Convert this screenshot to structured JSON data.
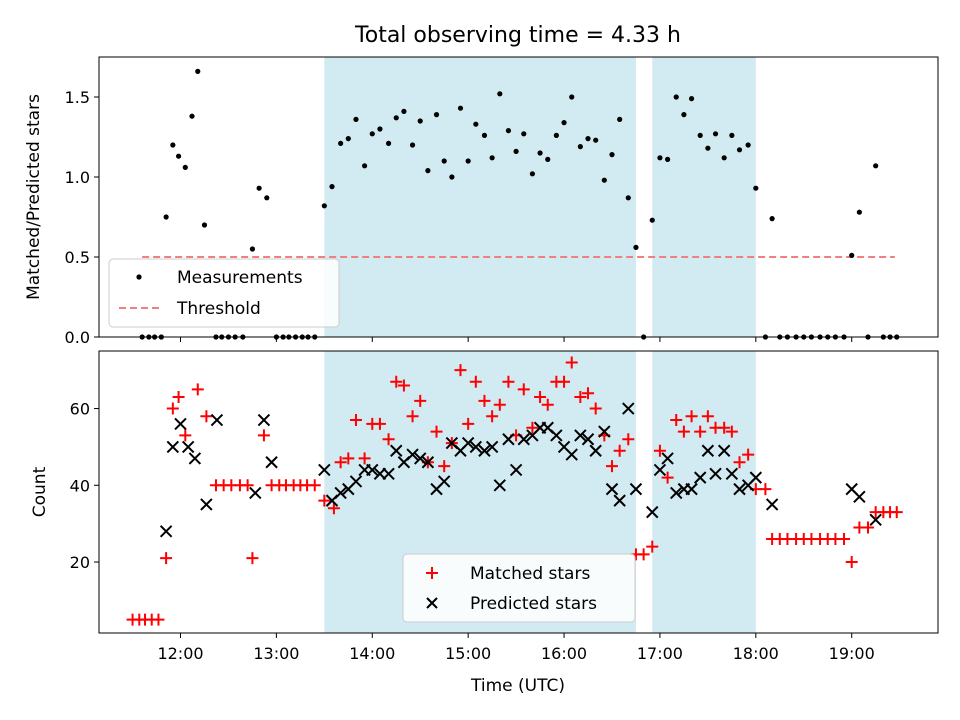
{
  "chart_data": {
    "title": "Total observing time = 4.33 h",
    "xlabel": "Time (UTC)",
    "xlim": [
      11.15,
      19.9
    ],
    "xticks": [
      {
        "v": 12,
        "label": "12:00"
      },
      {
        "v": 13,
        "label": "13:00"
      },
      {
        "v": 14,
        "label": "14:00"
      },
      {
        "v": 15,
        "label": "15:00"
      },
      {
        "v": 16,
        "label": "16:00"
      },
      {
        "v": 17,
        "label": "17:00"
      },
      {
        "v": 18,
        "label": "18:00"
      },
      {
        "v": 19,
        "label": "19:00"
      }
    ],
    "shaded_spans": [
      [
        13.5,
        16.75
      ],
      [
        16.92,
        18.0
      ]
    ],
    "shade_color": "#add8e6",
    "top": {
      "type": "scatter",
      "ylabel": "Matched/Predicted stars",
      "ylim": [
        0,
        1.75
      ],
      "yticks": [
        0.0,
        0.5,
        1.0,
        1.5
      ],
      "threshold": {
        "name": "Threshold",
        "value": 0.5,
        "x_range": [
          11.6,
          19.45
        ],
        "color": "#f08080"
      },
      "series_name": "Measurements",
      "legend_items": [
        "Measurements",
        "Threshold"
      ],
      "points": [
        [
          11.6,
          0
        ],
        [
          11.67,
          0
        ],
        [
          11.73,
          0
        ],
        [
          11.8,
          0
        ],
        [
          11.85,
          0.75
        ],
        [
          11.92,
          1.2
        ],
        [
          11.98,
          1.13
        ],
        [
          12.05,
          1.06
        ],
        [
          12.12,
          1.38
        ],
        [
          12.18,
          1.66
        ],
        [
          12.25,
          0.7
        ],
        [
          12.37,
          0
        ],
        [
          12.43,
          0
        ],
        [
          12.5,
          0
        ],
        [
          12.57,
          0
        ],
        [
          12.65,
          0
        ],
        [
          12.75,
          0.55
        ],
        [
          12.82,
          0.93
        ],
        [
          12.9,
          0.87
        ],
        [
          13.0,
          0
        ],
        [
          13.07,
          0
        ],
        [
          13.13,
          0
        ],
        [
          13.2,
          0
        ],
        [
          13.27,
          0
        ],
        [
          13.33,
          0
        ],
        [
          13.4,
          0
        ],
        [
          13.5,
          0.82
        ],
        [
          13.58,
          0.94
        ],
        [
          13.67,
          1.21
        ],
        [
          13.75,
          1.24
        ],
        [
          13.83,
          1.36
        ],
        [
          13.92,
          1.07
        ],
        [
          14.0,
          1.27
        ],
        [
          14.08,
          1.3
        ],
        [
          14.17,
          1.21
        ],
        [
          14.25,
          1.37
        ],
        [
          14.33,
          1.41
        ],
        [
          14.42,
          1.2
        ],
        [
          14.5,
          1.35
        ],
        [
          14.58,
          1.04
        ],
        [
          14.67,
          1.39
        ],
        [
          14.75,
          1.1
        ],
        [
          14.83,
          1.0
        ],
        [
          14.92,
          1.43
        ],
        [
          15.0,
          1.1
        ],
        [
          15.08,
          1.33
        ],
        [
          15.17,
          1.26
        ],
        [
          15.25,
          1.12
        ],
        [
          15.33,
          1.52
        ],
        [
          15.42,
          1.29
        ],
        [
          15.5,
          1.16
        ],
        [
          15.58,
          1.27
        ],
        [
          15.67,
          1.02
        ],
        [
          15.75,
          1.15
        ],
        [
          15.83,
          1.11
        ],
        [
          15.92,
          1.26
        ],
        [
          16.0,
          1.34
        ],
        [
          16.08,
          1.5
        ],
        [
          16.17,
          1.19
        ],
        [
          16.25,
          1.24
        ],
        [
          16.33,
          1.23
        ],
        [
          16.42,
          0.98
        ],
        [
          16.5,
          1.14
        ],
        [
          16.58,
          1.36
        ],
        [
          16.67,
          0.87
        ],
        [
          16.75,
          0.56
        ],
        [
          16.83,
          0
        ],
        [
          16.92,
          0.73
        ],
        [
          17.0,
          1.12
        ],
        [
          17.08,
          1.11
        ],
        [
          17.17,
          1.5
        ],
        [
          17.25,
          1.39
        ],
        [
          17.33,
          1.49
        ],
        [
          17.42,
          1.26
        ],
        [
          17.5,
          1.18
        ],
        [
          17.58,
          1.27
        ],
        [
          17.67,
          1.12
        ],
        [
          17.75,
          1.26
        ],
        [
          17.83,
          1.17
        ],
        [
          17.92,
          1.2
        ],
        [
          18.0,
          0.93
        ],
        [
          18.1,
          0
        ],
        [
          18.17,
          0.74
        ],
        [
          18.25,
          0
        ],
        [
          18.33,
          0
        ],
        [
          18.42,
          0
        ],
        [
          18.5,
          0
        ],
        [
          18.58,
          0
        ],
        [
          18.67,
          0
        ],
        [
          18.75,
          0
        ],
        [
          18.83,
          0
        ],
        [
          18.92,
          0
        ],
        [
          19.0,
          0.51
        ],
        [
          19.08,
          0.78
        ],
        [
          19.17,
          0
        ],
        [
          19.25,
          1.07
        ],
        [
          19.33,
          0
        ],
        [
          19.4,
          0
        ],
        [
          19.47,
          0
        ]
      ]
    },
    "bottom": {
      "type": "scatter",
      "ylabel": "Count",
      "ylim": [
        1.5,
        75
      ],
      "yticks": [
        20,
        40,
        60
      ],
      "series": [
        {
          "name": "Matched stars",
          "marker": "+",
          "color": "#ff0000",
          "points": [
            [
              11.5,
              5
            ],
            [
              11.57,
              5
            ],
            [
              11.63,
              5
            ],
            [
              11.7,
              5
            ],
            [
              11.77,
              5
            ],
            [
              11.85,
              21
            ],
            [
              11.92,
              60
            ],
            [
              11.98,
              63
            ],
            [
              12.05,
              53
            ],
            [
              12.18,
              65
            ],
            [
              12.27,
              58
            ],
            [
              12.37,
              40
            ],
            [
              12.45,
              40
            ],
            [
              12.53,
              40
            ],
            [
              12.62,
              40
            ],
            [
              12.7,
              40
            ],
            [
              12.75,
              21
            ],
            [
              12.87,
              53
            ],
            [
              12.95,
              40
            ],
            [
              13.03,
              40
            ],
            [
              13.1,
              40
            ],
            [
              13.18,
              40
            ],
            [
              13.25,
              40
            ],
            [
              13.32,
              40
            ],
            [
              13.4,
              40
            ],
            [
              13.5,
              36
            ],
            [
              13.6,
              34
            ],
            [
              13.67,
              46
            ],
            [
              13.75,
              47
            ],
            [
              13.83,
              57
            ],
            [
              13.92,
              47
            ],
            [
              14.0,
              56
            ],
            [
              14.08,
              56
            ],
            [
              14.17,
              52
            ],
            [
              14.25,
              67
            ],
            [
              14.33,
              66
            ],
            [
              14.42,
              58
            ],
            [
              14.5,
              62
            ],
            [
              14.58,
              46
            ],
            [
              14.67,
              54
            ],
            [
              14.75,
              45
            ],
            [
              14.83,
              51
            ],
            [
              14.92,
              70
            ],
            [
              15.0,
              56
            ],
            [
              15.08,
              67
            ],
            [
              15.17,
              62
            ],
            [
              15.25,
              58
            ],
            [
              15.33,
              61
            ],
            [
              15.42,
              67
            ],
            [
              15.5,
              53
            ],
            [
              15.58,
              65
            ],
            [
              15.67,
              55
            ],
            [
              15.75,
              63
            ],
            [
              15.83,
              61
            ],
            [
              15.92,
              67
            ],
            [
              16.0,
              67
            ],
            [
              16.08,
              72
            ],
            [
              16.17,
              63
            ],
            [
              16.25,
              64
            ],
            [
              16.33,
              60
            ],
            [
              16.42,
              53
            ],
            [
              16.5,
              45
            ],
            [
              16.58,
              49
            ],
            [
              16.67,
              52
            ],
            [
              16.75,
              22
            ],
            [
              16.83,
              22
            ],
            [
              16.92,
              24
            ],
            [
              17.0,
              49
            ],
            [
              17.08,
              42
            ],
            [
              17.17,
              57
            ],
            [
              17.25,
              54
            ],
            [
              17.33,
              58
            ],
            [
              17.42,
              54
            ],
            [
              17.5,
              58
            ],
            [
              17.58,
              55
            ],
            [
              17.67,
              55
            ],
            [
              17.75,
              54
            ],
            [
              17.83,
              46
            ],
            [
              17.92,
              48
            ],
            [
              18.0,
              39
            ],
            [
              18.1,
              39
            ],
            [
              18.17,
              26
            ],
            [
              18.25,
              26
            ],
            [
              18.33,
              26
            ],
            [
              18.42,
              26
            ],
            [
              18.5,
              26
            ],
            [
              18.58,
              26
            ],
            [
              18.67,
              26
            ],
            [
              18.75,
              26
            ],
            [
              18.83,
              26
            ],
            [
              18.92,
              26
            ],
            [
              19.0,
              20
            ],
            [
              19.08,
              29
            ],
            [
              19.17,
              29
            ],
            [
              19.25,
              33
            ],
            [
              19.33,
              33
            ],
            [
              19.4,
              33
            ],
            [
              19.47,
              33
            ]
          ]
        },
        {
          "name": "Predicted stars",
          "marker": "x",
          "color": "#000000",
          "points": [
            [
              11.85,
              28
            ],
            [
              11.92,
              50
            ],
            [
              12.0,
              56
            ],
            [
              12.08,
              50
            ],
            [
              12.15,
              47
            ],
            [
              12.27,
              35
            ],
            [
              12.38,
              57
            ],
            [
              12.78,
              38
            ],
            [
              12.87,
              57
            ],
            [
              12.95,
              46
            ],
            [
              13.5,
              44
            ],
            [
              13.58,
              36
            ],
            [
              13.67,
              38
            ],
            [
              13.75,
              39
            ],
            [
              13.83,
              41
            ],
            [
              13.92,
              44
            ],
            [
              14.0,
              44
            ],
            [
              14.08,
              43
            ],
            [
              14.17,
              43
            ],
            [
              14.25,
              49
            ],
            [
              14.33,
              46
            ],
            [
              14.42,
              48
            ],
            [
              14.5,
              47
            ],
            [
              14.58,
              46
            ],
            [
              14.67,
              39
            ],
            [
              14.75,
              41
            ],
            [
              14.83,
              51
            ],
            [
              14.92,
              49
            ],
            [
              15.0,
              51
            ],
            [
              15.08,
              50
            ],
            [
              15.17,
              49
            ],
            [
              15.25,
              50
            ],
            [
              15.33,
              40
            ],
            [
              15.42,
              52
            ],
            [
              15.5,
              44
            ],
            [
              15.58,
              52
            ],
            [
              15.67,
              53
            ],
            [
              15.75,
              55
            ],
            [
              15.83,
              55
            ],
            [
              15.92,
              53
            ],
            [
              16.0,
              50
            ],
            [
              16.08,
              48
            ],
            [
              16.17,
              53
            ],
            [
              16.25,
              52
            ],
            [
              16.33,
              49
            ],
            [
              16.42,
              54
            ],
            [
              16.5,
              39
            ],
            [
              16.58,
              36
            ],
            [
              16.67,
              60
            ],
            [
              16.75,
              39
            ],
            [
              16.92,
              33
            ],
            [
              17.0,
              44
            ],
            [
              17.08,
              47
            ],
            [
              17.17,
              38
            ],
            [
              17.25,
              39
            ],
            [
              17.33,
              39
            ],
            [
              17.42,
              42
            ],
            [
              17.5,
              49
            ],
            [
              17.58,
              43
            ],
            [
              17.67,
              49
            ],
            [
              17.75,
              43
            ],
            [
              17.83,
              39
            ],
            [
              17.92,
              40
            ],
            [
              18.0,
              42
            ],
            [
              18.17,
              35
            ],
            [
              19.0,
              39
            ],
            [
              19.08,
              37
            ],
            [
              19.25,
              31
            ]
          ]
        }
      ]
    }
  }
}
